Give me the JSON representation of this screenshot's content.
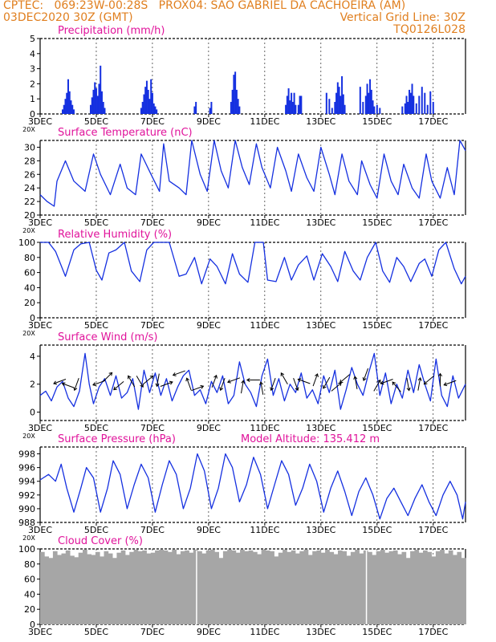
{
  "header": {
    "line1": "CPTEC:   069:23W-00:28S   PROX04: SAO GABRIEL DA CACHOEIRA (AM)",
    "line2_left": "03DEC2020 30Z (GMT)",
    "line2_right": "Vertical Grid Line: 30Z",
    "line3_right": "TQ0126L028",
    "model_altitude": "Model Altitude: 135.412 m",
    "partial_label": "20X"
  },
  "colors": {
    "header": "#e07f1f",
    "title": "#e0139b",
    "series": "#1530e0",
    "cloud": "#a6a6a6"
  },
  "x_ticks": [
    "3DEC",
    "5DEC",
    "7DEC",
    "9DEC",
    "11DEC",
    "13DEC",
    "15DEC",
    "17DEC"
  ],
  "chart_data": [
    {
      "type": "bar",
      "title": "Precipitation (mm/h)",
      "x_range": [
        3,
        18.15
      ],
      "ylim": [
        0,
        5
      ],
      "y_ticks": [
        "0",
        "1",
        "2",
        "3",
        "4",
        "5"
      ],
      "x": [
        3.8,
        3.85,
        3.9,
        3.95,
        4.0,
        4.05,
        4.1,
        4.15,
        4.2,
        4.8,
        4.85,
        4.9,
        4.95,
        5.0,
        5.05,
        5.1,
        5.15,
        5.2,
        5.25,
        5.3,
        6.6,
        6.65,
        6.7,
        6.75,
        6.8,
        6.85,
        6.9,
        6.95,
        7.0,
        7.05,
        7.1,
        7.15,
        8.5,
        8.55,
        9.05,
        9.1,
        9.8,
        9.85,
        9.9,
        9.95,
        10.0,
        10.05,
        10.1,
        11.75,
        11.8,
        11.85,
        11.9,
        11.95,
        12.0,
        12.05,
        12.1,
        12.2,
        12.25,
        12.3,
        13.2,
        13.3,
        13.4,
        13.5,
        13.55,
        13.6,
        13.65,
        13.7,
        13.75,
        13.8,
        13.85,
        14.4,
        14.5,
        14.6,
        14.65,
        14.7,
        14.75,
        14.8,
        14.85,
        14.9,
        15.0,
        15.1,
        15.9,
        16.0,
        16.05,
        16.1,
        16.15,
        16.2,
        16.25,
        16.3,
        16.4,
        16.5,
        16.6,
        16.7,
        16.8,
        16.9,
        17.0
      ],
      "values": [
        0.3,
        0.6,
        1.0,
        1.4,
        2.3,
        1.5,
        0.9,
        0.6,
        0.3,
        0.6,
        1.1,
        1.6,
        2.1,
        1.7,
        1.2,
        2.0,
        3.2,
        1.5,
        0.8,
        0.4,
        0.4,
        0.8,
        1.3,
        1.8,
        2.2,
        1.6,
        1.0,
        2.3,
        1.4,
        0.7,
        0.5,
        0.3,
        0.5,
        0.8,
        0.4,
        0.8,
        0.8,
        1.6,
        2.6,
        2.8,
        1.6,
        1.0,
        0.5,
        0.6,
        1.2,
        1.7,
        0.9,
        1.4,
        0.8,
        1.4,
        0.6,
        0.6,
        1.2,
        1.2,
        1.4,
        1.0,
        0.4,
        0.8,
        1.4,
        2.1,
        1.8,
        1.2,
        2.5,
        1.3,
        0.6,
        1.8,
        0.8,
        1.2,
        2.0,
        1.4,
        2.3,
        1.6,
        0.9,
        0.5,
        0.6,
        0.4,
        0.5,
        0.7,
        1.2,
        0.8,
        1.6,
        1.4,
        2.0,
        1.2,
        0.7,
        1.2,
        1.8,
        1.4,
        0.6,
        1.5,
        0.8
      ]
    },
    {
      "type": "line",
      "title": "Surface Temperature (nC)",
      "x_range": [
        3,
        18.15
      ],
      "ylim": [
        20,
        31
      ],
      "y_ticks": [
        "20",
        "22",
        "24",
        "26",
        "28",
        "30"
      ],
      "x": [
        3.0,
        3.25,
        3.5,
        3.6,
        3.9,
        4.2,
        4.6,
        4.9,
        5.15,
        5.5,
        5.85,
        6.1,
        6.4,
        6.6,
        6.95,
        7.25,
        7.4,
        7.6,
        7.95,
        8.2,
        8.4,
        8.7,
        8.95,
        9.2,
        9.45,
        9.7,
        9.95,
        10.2,
        10.45,
        10.7,
        10.9,
        11.2,
        11.45,
        11.75,
        11.95,
        12.2,
        12.5,
        12.75,
        13.0,
        13.3,
        13.5,
        13.75,
        14.0,
        14.3,
        14.45,
        14.75,
        15.0,
        15.25,
        15.5,
        15.75,
        15.95,
        16.25,
        16.5,
        16.75,
        16.95,
        17.25,
        17.5,
        17.75,
        17.95,
        18.15
      ],
      "values": [
        23,
        22,
        21.3,
        25,
        28,
        25,
        23.5,
        29,
        26,
        23,
        27.5,
        24,
        23,
        29,
        26,
        23.5,
        30.5,
        25,
        24,
        23,
        31,
        26,
        23.5,
        31,
        26.5,
        24,
        31,
        27,
        24.5,
        30.5,
        27,
        24,
        30,
        26.5,
        23.5,
        29,
        25.5,
        23.5,
        30,
        26,
        23,
        29,
        25,
        23,
        28,
        24.5,
        22.5,
        29,
        25,
        23,
        27.5,
        24,
        22.5,
        29,
        25,
        22.5,
        27,
        23,
        31,
        29.5
      ]
    },
    {
      "type": "line",
      "title": "Relative Humidity (%)",
      "x_range": [
        3,
        18.15
      ],
      "ylim": [
        0,
        100
      ],
      "y_ticks": [
        "0",
        "20",
        "40",
        "60",
        "80",
        "100"
      ],
      "x": [
        3.0,
        3.3,
        3.55,
        3.9,
        4.2,
        4.45,
        4.75,
        5.0,
        5.2,
        5.45,
        5.7,
        6.0,
        6.25,
        6.55,
        6.8,
        7.05,
        7.35,
        7.6,
        7.95,
        8.2,
        8.5,
        8.75,
        9.05,
        9.3,
        9.6,
        9.85,
        10.1,
        10.4,
        10.65,
        10.95,
        11.1,
        11.4,
        11.7,
        11.95,
        12.2,
        12.5,
        12.75,
        13.05,
        13.35,
        13.6,
        13.85,
        14.15,
        14.4,
        14.65,
        14.95,
        15.2,
        15.45,
        15.7,
        15.95,
        16.2,
        16.5,
        16.7,
        16.95,
        17.2,
        17.45,
        17.75,
        18.0,
        18.15
      ],
      "values": [
        100,
        100,
        88,
        55,
        90,
        98,
        100,
        63,
        50,
        86,
        90,
        100,
        62,
        48,
        90,
        100,
        100,
        100,
        55,
        58,
        80,
        45,
        78,
        68,
        45,
        85,
        58,
        47,
        100,
        100,
        50,
        48,
        80,
        50,
        70,
        82,
        50,
        85,
        68,
        48,
        88,
        62,
        50,
        80,
        100,
        62,
        47,
        80,
        68,
        48,
        72,
        78,
        55,
        90,
        100,
        65,
        45,
        55
      ]
    },
    {
      "type": "line",
      "title": "Surface Wind (m/s)",
      "x_range": [
        3,
        18.15
      ],
      "ylim": [
        -0.6,
        4.8
      ],
      "y_ticks": [
        "0",
        "2",
        "4"
      ],
      "x": [
        3.0,
        3.2,
        3.4,
        3.6,
        3.8,
        4.0,
        4.2,
        4.4,
        4.6,
        4.75,
        4.9,
        5.1,
        5.3,
        5.5,
        5.7,
        5.9,
        6.1,
        6.3,
        6.5,
        6.7,
        6.9,
        7.1,
        7.3,
        7.5,
        7.7,
        7.9,
        8.1,
        8.3,
        8.5,
        8.7,
        8.9,
        9.1,
        9.3,
        9.5,
        9.7,
        9.9,
        10.1,
        10.3,
        10.5,
        10.7,
        10.9,
        11.1,
        11.3,
        11.5,
        11.7,
        11.9,
        12.1,
        12.3,
        12.5,
        12.7,
        12.9,
        13.1,
        13.3,
        13.5,
        13.7,
        13.9,
        14.1,
        14.3,
        14.5,
        14.7,
        14.9,
        15.1,
        15.3,
        15.5,
        15.7,
        15.9,
        16.1,
        16.3,
        16.5,
        16.7,
        16.9,
        17.1,
        17.3,
        17.5,
        17.7,
        17.9,
        18.15
      ],
      "values": [
        1.2,
        1.5,
        0.8,
        1.8,
        2.2,
        1.0,
        0.4,
        1.5,
        4.2,
        2.0,
        0.6,
        1.8,
        2.4,
        1.2,
        2.6,
        1.0,
        1.4,
        2.4,
        0.2,
        3.0,
        1.4,
        2.8,
        1.2,
        2.4,
        0.8,
        1.8,
        2.6,
        3.0,
        1.2,
        1.6,
        0.6,
        2.2,
        1.4,
        2.6,
        0.6,
        1.2,
        3.6,
        2.0,
        1.4,
        0.4,
        2.6,
        3.8,
        1.2,
        2.4,
        0.8,
        2.0,
        1.4,
        2.8,
        1.0,
        1.6,
        0.6,
        2.6,
        1.4,
        3.0,
        0.2,
        1.6,
        3.2,
        2.0,
        1.2,
        2.8,
        4.2,
        1.2,
        2.8,
        0.6,
        2.0,
        1.0,
        3.0,
        1.4,
        3.4,
        2.0,
        0.8,
        3.8,
        1.2,
        0.4,
        2.6,
        1.0,
        2.0
      ],
      "arrows_x": [
        3.7,
        4.0,
        4.3,
        5.1,
        5.4,
        5.8,
        6.25,
        6.55,
        6.85,
        7.2,
        7.5,
        7.95,
        8.3,
        8.6,
        9.2,
        9.5,
        9.9,
        10.2,
        10.6,
        10.9,
        11.3,
        11.7,
        12.1,
        12.4,
        12.8,
        13.2,
        13.55,
        13.85,
        14.25,
        14.6,
        15.0,
        15.35,
        15.7,
        16.1,
        16.5,
        16.85,
        17.25,
        17.6
      ],
      "arrows_y": [
        2.2,
        1.9,
        2.0,
        2.1,
        2.5,
        1.9,
        2.2,
        2.2,
        2.3,
        2.3,
        2.0,
        2.8,
        2.0,
        1.7,
        2.2,
        2.0,
        2.3,
        1.8,
        2.3,
        1.7,
        2.0,
        2.4,
        2.0,
        2.2,
        2.3,
        2.1,
        1.8,
        2.4,
        2.1,
        2.7,
        1.9,
        2.2,
        1.8,
        2.0,
        2.0,
        2.3,
        2.3,
        2.1
      ],
      "arrows_dir_deg": [
        200,
        160,
        250,
        200,
        45,
        220,
        120,
        300,
        40,
        260,
        20,
        200,
        110,
        20,
        70,
        250,
        200,
        80,
        180,
        100,
        250,
        120,
        290,
        160,
        70,
        240,
        40,
        220,
        100,
        250,
        60,
        200,
        130,
        280,
        80,
        220,
        90,
        200
      ]
    },
    {
      "type": "line",
      "title": "Surface Pressure (hPa)",
      "x_range": [
        3,
        18.15
      ],
      "ylim": [
        988,
        999
      ],
      "y_ticks": [
        "988",
        "990",
        "992",
        "994",
        "996",
        "998"
      ],
      "x": [
        3.0,
        3.3,
        3.55,
        3.75,
        3.95,
        4.2,
        4.45,
        4.65,
        4.9,
        5.15,
        5.4,
        5.6,
        5.85,
        6.1,
        6.35,
        6.6,
        6.85,
        7.1,
        7.35,
        7.6,
        7.85,
        8.1,
        8.35,
        8.6,
        8.85,
        9.1,
        9.35,
        9.6,
        9.85,
        10.1,
        10.35,
        10.6,
        10.85,
        11.1,
        11.35,
        11.6,
        11.85,
        12.1,
        12.35,
        12.6,
        12.85,
        13.1,
        13.35,
        13.6,
        13.85,
        14.1,
        14.35,
        14.6,
        14.85,
        15.1,
        15.35,
        15.6,
        15.85,
        16.1,
        16.35,
        16.6,
        16.85,
        17.1,
        17.35,
        17.6,
        17.85,
        18.05,
        18.15
      ],
      "values": [
        994.2,
        995,
        994,
        996.5,
        993,
        989.5,
        993,
        996,
        994.5,
        989.5,
        993,
        997,
        995,
        990,
        993.5,
        996.5,
        994.5,
        989.5,
        993.5,
        997,
        995,
        990,
        993,
        998,
        995.5,
        990,
        993,
        998,
        996,
        991,
        993.5,
        997.5,
        995,
        990,
        993.5,
        997,
        995,
        990.5,
        993,
        996.5,
        994,
        989.5,
        993,
        995.5,
        992.5,
        989,
        992.5,
        994.5,
        992,
        988.5,
        991.5,
        993,
        991,
        989,
        991.5,
        993.5,
        991,
        989,
        992,
        994,
        992,
        988.5,
        991
      ]
    },
    {
      "type": "bar",
      "title": "Cloud Cover (%)",
      "x_range": [
        3,
        18.15
      ],
      "ylim": [
        0,
        100
      ],
      "y_ticks": [
        "0",
        "20",
        "40",
        "60",
        "80",
        "100"
      ],
      "values": [
        96,
        90,
        88,
        97,
        92,
        94,
        98,
        91,
        89,
        95,
        99,
        93,
        92,
        96,
        90,
        97,
        94,
        88,
        95,
        98,
        92,
        96,
        99,
        97,
        98,
        94,
        95,
        98,
        99,
        98,
        96,
        99,
        93,
        97,
        98,
        95,
        99,
        97,
        94,
        98,
        99,
        96,
        88,
        97,
        99,
        98,
        95,
        99,
        97,
        98,
        96,
        93,
        99,
        98,
        97,
        90,
        95,
        99,
        96,
        98,
        94,
        97,
        99,
        92,
        97,
        98,
        95,
        99,
        96,
        93,
        98,
        97,
        91,
        96,
        99,
        94,
        98,
        96,
        92,
        97,
        99,
        95,
        97,
        98,
        93,
        96,
        88,
        97,
        99,
        95,
        98,
        96,
        90,
        97,
        99,
        94,
        98,
        92,
        96,
        88
      ],
      "gaps_x": [
        8.55,
        14.6
      ]
    }
  ]
}
